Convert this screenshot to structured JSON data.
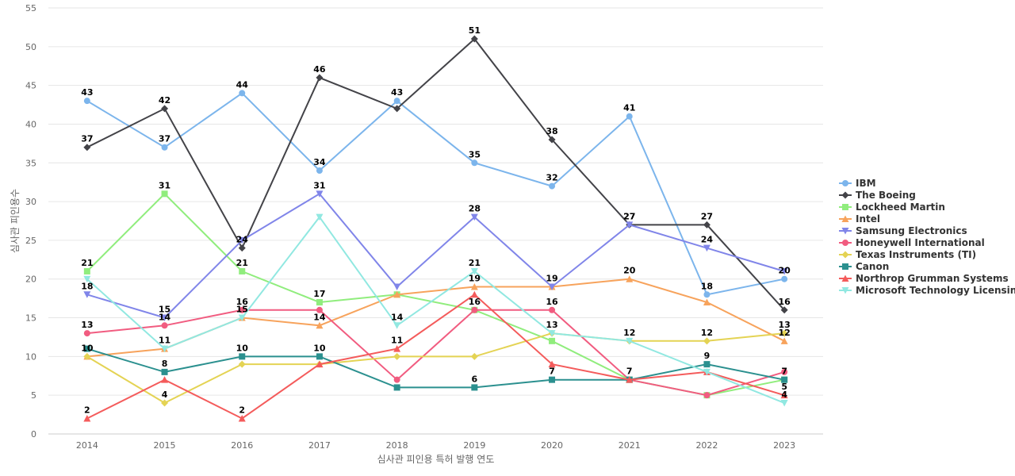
{
  "chart_data": {
    "type": "line",
    "title": "",
    "xlabel": "심사관 피인용 특허 발행 연도",
    "ylabel": "심사관 피인용수",
    "x": [
      "2014",
      "2015",
      "2016",
      "2017",
      "2018",
      "2019",
      "2020",
      "2021",
      "2022",
      "2023"
    ],
    "ylim": [
      0,
      55
    ],
    "yticks": [
      0,
      5,
      10,
      15,
      20,
      25,
      30,
      35,
      40,
      45,
      50,
      55
    ],
    "grid": true,
    "legend_position": "right",
    "series": [
      {
        "name": "IBM",
        "color": "#7cb5ec",
        "marker": "circle",
        "values": [
          43,
          37,
          44,
          34,
          43,
          35,
          32,
          41,
          18,
          20
        ]
      },
      {
        "name": "The Boeing",
        "color": "#434348",
        "marker": "diamond",
        "values": [
          37,
          42,
          24,
          46,
          42,
          51,
          38,
          27,
          27,
          16
        ]
      },
      {
        "name": "Lockheed Martin",
        "color": "#90ed7d",
        "marker": "square",
        "values": [
          21,
          31,
          21,
          17,
          18,
          16,
          12,
          7,
          5,
          7
        ]
      },
      {
        "name": "Intel",
        "color": "#f7a35c",
        "marker": "triangle",
        "values": [
          10,
          11,
          15,
          14,
          18,
          19,
          19,
          20,
          17,
          12
        ]
      },
      {
        "name": "Samsung Electronics",
        "color": "#8085e9",
        "marker": "triangle-down",
        "values": [
          18,
          15,
          25,
          31,
          19,
          28,
          19,
          27,
          24,
          21
        ]
      },
      {
        "name": "Honeywell International",
        "color": "#f15c80",
        "marker": "circle",
        "values": [
          13,
          14,
          16,
          16,
          7,
          16,
          16,
          7,
          5,
          8
        ]
      },
      {
        "name": "Texas Instruments (TI)",
        "color": "#e4d354",
        "marker": "diamond",
        "values": [
          10,
          4,
          9,
          9,
          10,
          10,
          13,
          12,
          12,
          13
        ]
      },
      {
        "name": "Canon",
        "color": "#2b908f",
        "marker": "square",
        "values": [
          11,
          8,
          10,
          10,
          6,
          6,
          7,
          7,
          9,
          7
        ]
      },
      {
        "name": "Northrop Grumman Systems",
        "color": "#f45b5b",
        "marker": "triangle",
        "values": [
          2,
          7,
          2,
          9,
          11,
          18,
          9,
          7,
          8,
          5
        ]
      },
      {
        "name": "Microsoft Technology Licensing",
        "color": "#91e8e1",
        "marker": "triangle-down",
        "values": [
          20,
          11,
          15,
          28,
          14,
          21,
          13,
          12,
          8,
          4
        ]
      }
    ],
    "data_labels": [
      {
        "series": "IBM",
        "points": [
          0,
          1,
          2,
          3,
          4,
          5,
          6,
          7,
          8,
          9
        ]
      },
      {
        "series": "The Boeing",
        "points": [
          0,
          1,
          2,
          3,
          5,
          6,
          7,
          8,
          9
        ]
      },
      {
        "series": "Lockheed Martin",
        "points": [
          0,
          1,
          2,
          3
        ]
      },
      {
        "series": "Intel",
        "points": [
          0,
          1,
          2,
          3,
          5,
          6,
          7,
          9
        ]
      },
      {
        "series": "Samsung Electronics",
        "points": [
          0,
          1,
          3,
          5,
          7,
          8
        ]
      },
      {
        "series": "Honeywell International",
        "points": [
          0,
          1,
          2,
          5,
          6
        ]
      },
      {
        "series": "Texas Instruments (TI)",
        "points": [
          1,
          6,
          7,
          8,
          9
        ]
      },
      {
        "series": "Canon",
        "points": [
          1,
          2,
          3,
          5,
          6,
          7,
          8,
          9
        ]
      },
      {
        "series": "Northrop Grumman Systems",
        "points": [
          0,
          2,
          4,
          9
        ]
      },
      {
        "series": "Microsoft Technology Licensing",
        "points": [
          4,
          5,
          9
        ]
      }
    ]
  }
}
